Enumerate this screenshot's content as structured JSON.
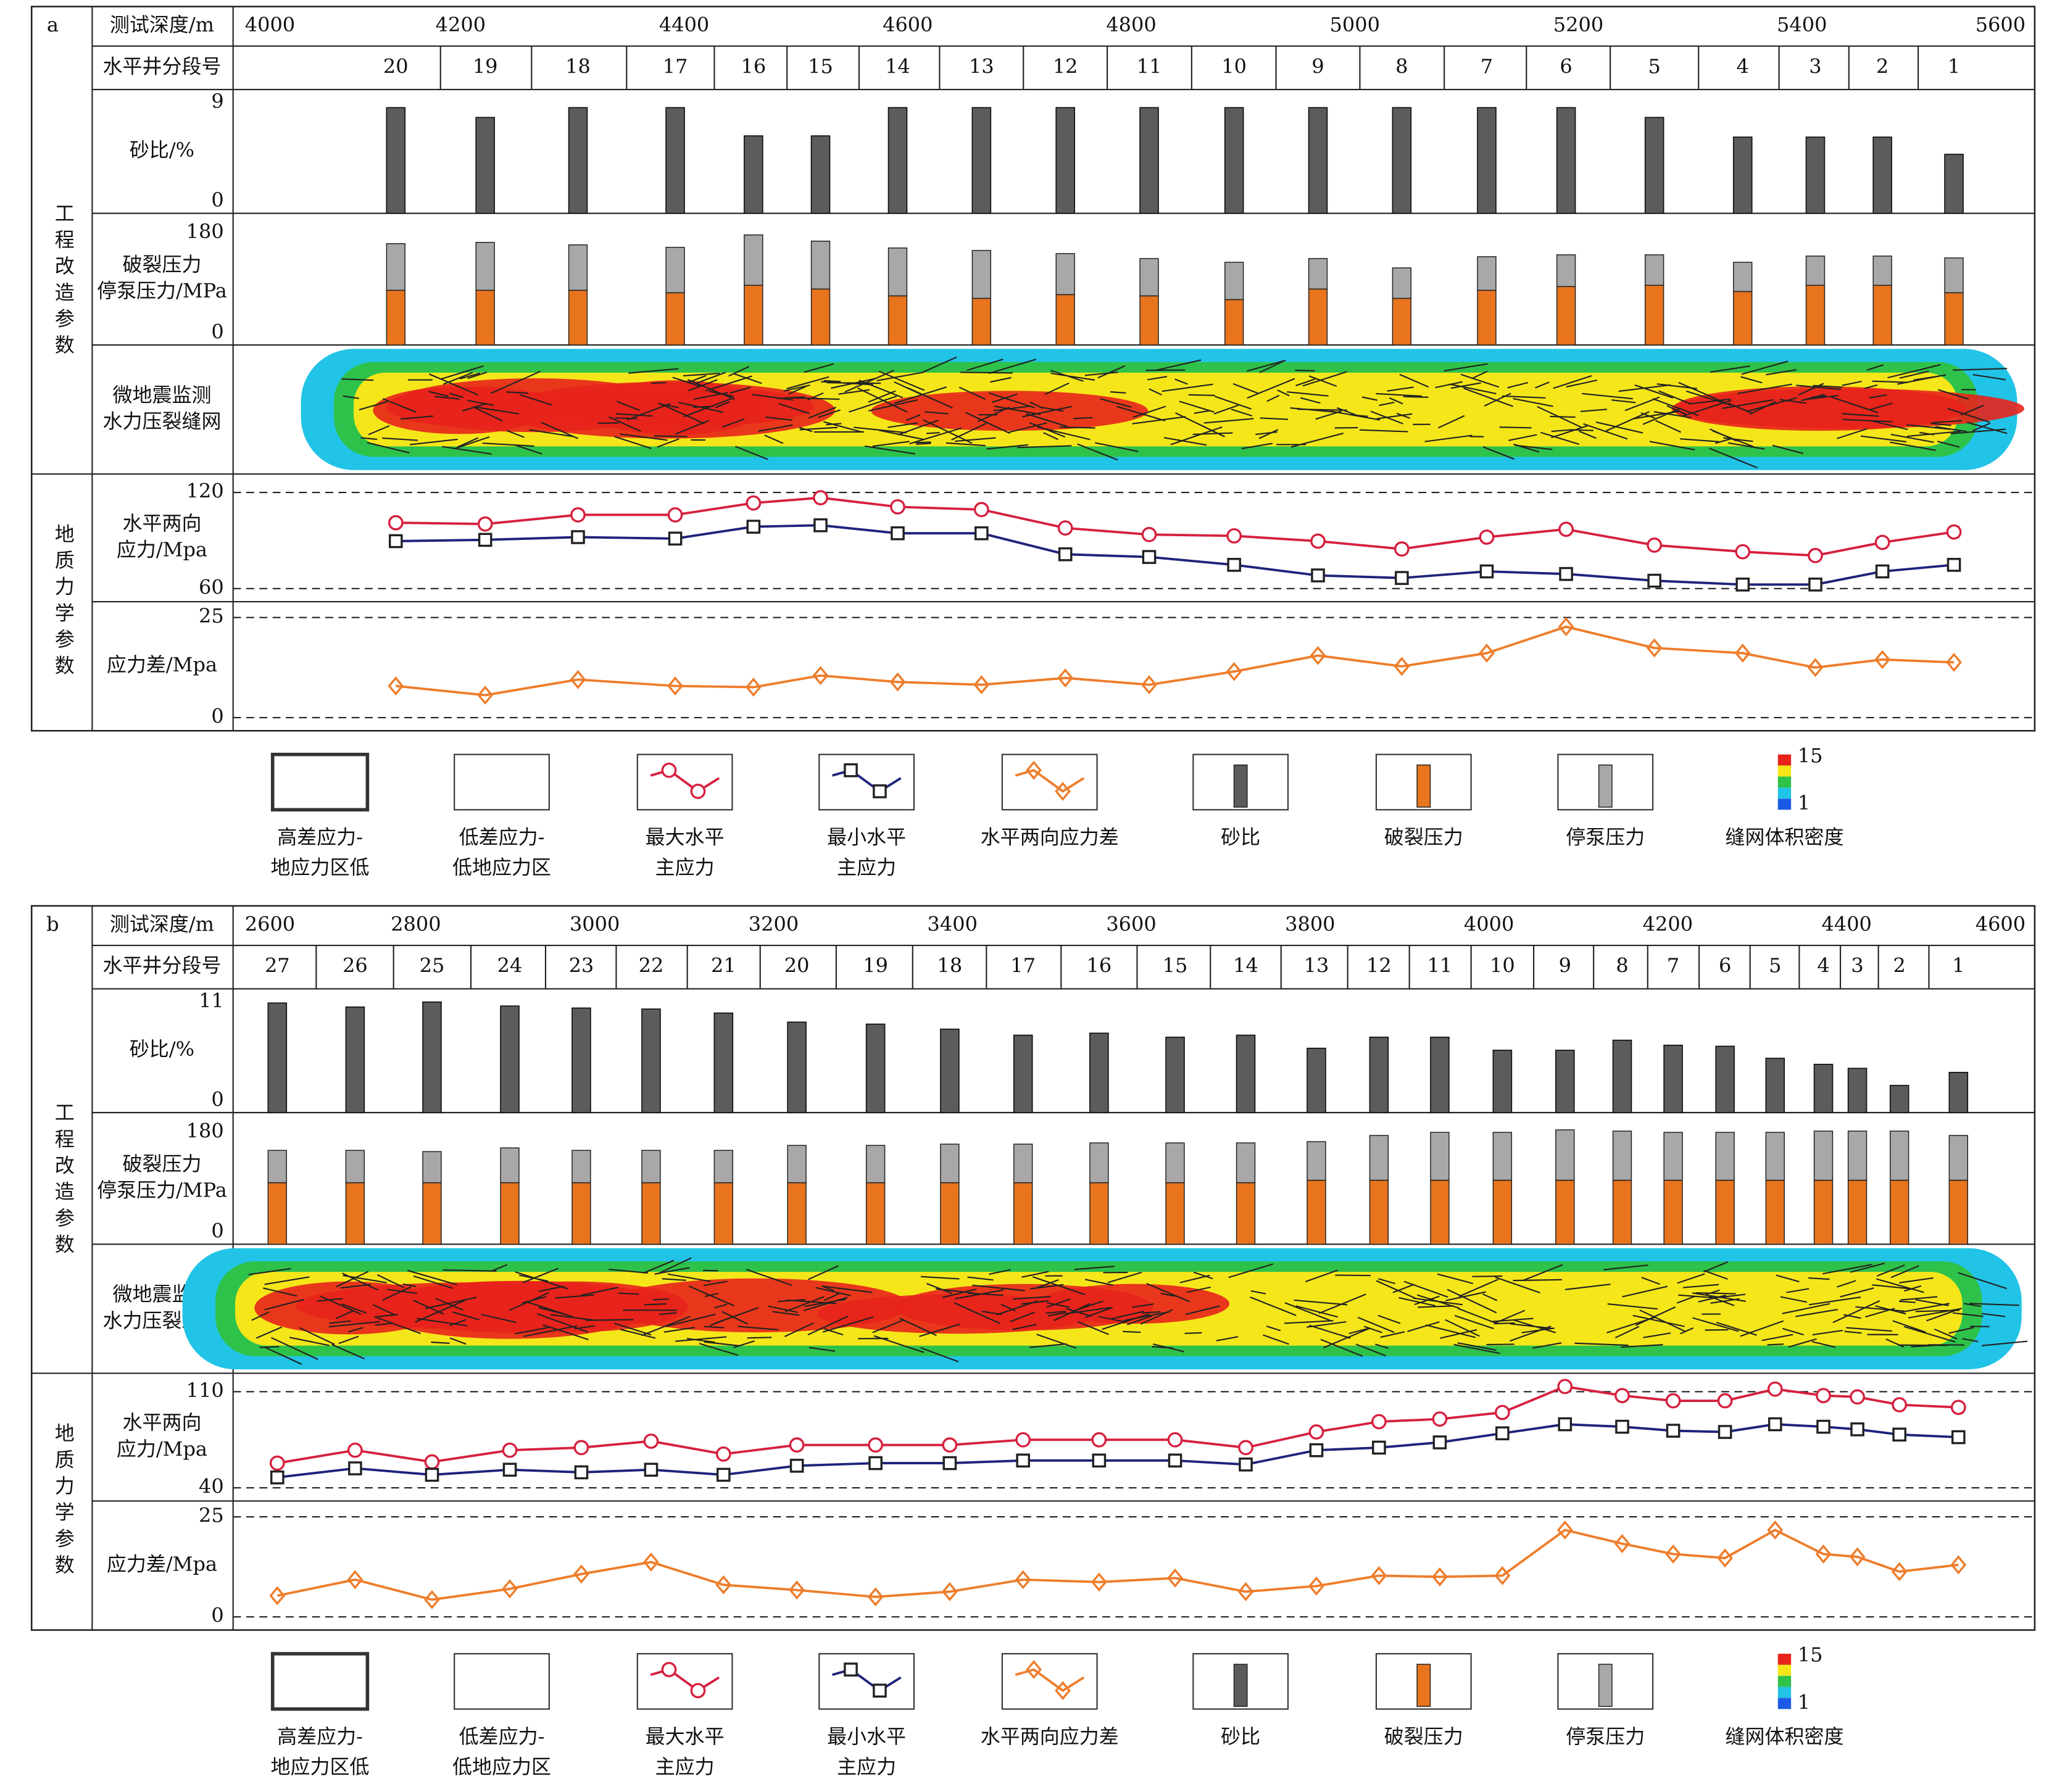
{
  "chart_data": [
    {
      "type": "welllog",
      "label": "a",
      "group_labels": [
        "工程改造参数",
        "地质力学参数"
      ],
      "depth_label": "测试深度/m",
      "xlim": [
        4000,
        5600
      ],
      "xticks": [
        4000,
        4200,
        4400,
        4600,
        4800,
        5000,
        5200,
        5400,
        5600
      ],
      "stage_label": "水平井分段号",
      "stages": [
        20,
        19,
        18,
        17,
        16,
        15,
        14,
        13,
        12,
        11,
        10,
        9,
        8,
        7,
        6,
        5,
        4,
        3,
        2,
        1
      ],
      "stage_depths": [
        4142,
        4222,
        4305,
        4392,
        4462,
        4522,
        4591,
        4666,
        4741,
        4816,
        4892,
        4967,
        5042,
        5118,
        5189,
        5268,
        5347,
        5412,
        5472,
        5536
      ],
      "sand": {
        "label": [
          "砂比/%"
        ],
        "ylim": [
          0,
          9
        ],
        "yticks": [
          0,
          9
        ],
        "color": "#5c5c5c",
        "values": [
          8.6,
          7.8,
          8.6,
          8.6,
          6.3,
          6.3,
          8.6,
          8.6,
          8.6,
          8.6,
          8.6,
          8.6,
          8.6,
          8.6,
          8.6,
          7.8,
          6.2,
          6.2,
          6.2,
          4.8
        ]
      },
      "pressure": {
        "label": [
          "破裂压力",
          "停泵压力/MPa"
        ],
        "ylim": [
          0,
          180
        ],
        "yticks": [
          0,
          180
        ],
        "series": [
          {
            "color": "#e8741e",
            "values": [
              88,
              88,
              88,
              84,
              96,
              90,
              79,
              75,
              81,
              79,
              73,
              90,
              75,
              88,
              94,
              96,
              86,
              96,
              96,
              84
            ]
          },
          {
            "color": "#a8a8a8",
            "values": [
              75,
              77,
              73,
              73,
              81,
              77,
              77,
              77,
              66,
              60,
              60,
              49,
              49,
              54,
              51,
              49,
              47,
              47,
              47,
              56
            ]
          }
        ]
      },
      "microseismic": {
        "label": [
          "微地震监测",
          "水力压裂缝网"
        ]
      },
      "stress": {
        "label": [
          "水平两向",
          "应力/Mpa"
        ],
        "ylim": [
          60,
          120
        ],
        "yticks": [
          60,
          120
        ],
        "grid": true,
        "series": [
          {
            "color": "#d6203f",
            "marker": "circle",
            "values": [
              101.1,
              100.3,
              106.0,
              106.0,
              113.4,
              116.7,
              111.0,
              109.3,
              97.8,
              93.7,
              92.9,
              89.6,
              84.7,
              92.1,
              97.0,
              87.1,
              83.0,
              80.6,
              88.8,
              95.3
            ]
          },
          {
            "color": "#1e237a",
            "marker": "square",
            "values": [
              89.6,
              90.4,
              92.1,
              91.2,
              98.6,
              99.5,
              94.5,
              94.5,
              81.4,
              79.7,
              74.8,
              68.2,
              66.6,
              70.7,
              69.1,
              64.9,
              62.5,
              62.5,
              70.7,
              74.8
            ]
          }
        ]
      },
      "stress_diff": {
        "label": [
          "应力差/Mpa"
        ],
        "ylim": [
          0,
          25
        ],
        "yticks": [
          0,
          25
        ],
        "grid": true,
        "color": "#ee7d2b",
        "marker": "diamond",
        "values": [
          7.9,
          5.6,
          9.5,
          7.9,
          7.6,
          10.5,
          8.9,
          8.2,
          9.9,
          8.2,
          11.5,
          15.5,
          12.8,
          16.1,
          22.7,
          17.4,
          16.1,
          12.5,
          14.5,
          13.8
        ]
      },
      "legend": [
        {
          "lines": [
            "高差应力-",
            "地应力区低"
          ],
          "swatch": "box-thick"
        },
        {
          "lines": [
            "低差应力-",
            "低地应力区"
          ],
          "swatch": "box"
        },
        {
          "lines": [
            "最大水平",
            "主应力"
          ],
          "swatch": "line",
          "color": "#d6203f",
          "marker": "circle"
        },
        {
          "lines": [
            "最小水平",
            "主应力"
          ],
          "swatch": "line",
          "color": "#1e237a",
          "marker": "square"
        },
        {
          "lines": [
            "水平两向应力差"
          ],
          "swatch": "line",
          "color": "#ee7d2b",
          "marker": "diamond"
        },
        {
          "lines": [
            "砂比"
          ],
          "swatch": "bar",
          "color": "#5c5c5c"
        },
        {
          "lines": [
            "破裂压力"
          ],
          "swatch": "bar",
          "color": "#e8741e"
        },
        {
          "lines": [
            "停泵压力"
          ],
          "swatch": "bar",
          "color": "#a8a8a8"
        },
        {
          "lines": [
            "缝网体积密度"
          ],
          "swatch": "colorbar",
          "colors": [
            "#e8231c",
            "#f5e61a",
            "#2ec24a",
            "#21c4e6",
            "#1c5ae6"
          ],
          "ticks": [
            15,
            1
          ]
        }
      ]
    },
    {
      "type": "welllog",
      "label": "b",
      "group_labels": [
        "工程改造参数",
        "地质力学参数"
      ],
      "depth_label": "测试深度/m",
      "xlim": [
        2600,
        4600
      ],
      "xticks": [
        2600,
        2800,
        3000,
        3200,
        3400,
        3600,
        3800,
        4000,
        4200,
        4400,
        4600
      ],
      "stage_label": "水平井分段号",
      "stages": [
        27,
        26,
        25,
        24,
        23,
        22,
        21,
        20,
        19,
        18,
        17,
        16,
        15,
        14,
        13,
        12,
        11,
        10,
        9,
        8,
        7,
        6,
        5,
        4,
        3,
        2,
        1
      ],
      "stage_depths": [
        2645,
        2732,
        2818,
        2905,
        2985,
        3063,
        3144,
        3226,
        3314,
        3397,
        3479,
        3564,
        3649,
        3728,
        3807,
        3877,
        3945,
        4015,
        4085,
        4149,
        4206,
        4264,
        4320,
        4374,
        4412,
        4459,
        4525
      ],
      "sand": {
        "label": [
          "砂比/%"
        ],
        "ylim": [
          0,
          11
        ],
        "yticks": [
          0,
          11
        ],
        "color": "#5c5c5c",
        "values": [
          10.9,
          10.5,
          11.0,
          10.6,
          10.4,
          10.3,
          9.9,
          9.0,
          8.8,
          8.3,
          7.7,
          7.9,
          7.5,
          7.7,
          6.4,
          7.5,
          7.5,
          6.2,
          6.2,
          7.2,
          6.7,
          6.6,
          5.4,
          4.8,
          4.4,
          2.7,
          4.0
        ]
      },
      "pressure": {
        "label": [
          "破裂压力",
          "停泵压力/MPa"
        ],
        "ylim": [
          0,
          180
        ],
        "yticks": [
          0,
          180
        ],
        "series": [
          {
            "color": "#e8741e",
            "values": [
              99,
              99,
              99,
              99,
              99,
              99,
              99,
              99,
              99,
              99,
              99,
              99,
              99,
              99,
              103,
              103,
              103,
              103,
              103,
              103,
              103,
              103,
              103,
              103,
              103,
              103,
              103
            ]
          },
          {
            "color": "#a8a8a8",
            "values": [
              52,
              52,
              50,
              56,
              52,
              52,
              52,
              60,
              60,
              62,
              62,
              64,
              64,
              64,
              62,
              72,
              77,
              77,
              81,
              79,
              77,
              77,
              77,
              79,
              79,
              79,
              72
            ]
          }
        ]
      },
      "microseismic": {
        "label": [
          "微地震监测",
          "水力压裂缝网"
        ]
      },
      "stress": {
        "label": [
          "水平两向",
          "应力/Mpa"
        ],
        "ylim": [
          40,
          110
        ],
        "yticks": [
          40,
          110
        ],
        "grid": true,
        "series": [
          {
            "color": "#d6203f",
            "marker": "circle",
            "values": [
              58.0,
              67.4,
              58.9,
              67.4,
              69.3,
              74.0,
              64.6,
              71.2,
              71.2,
              71.2,
              75.0,
              75.0,
              75.0,
              69.3,
              80.7,
              88.2,
              90.1,
              94.9,
              113.8,
              107.2,
              103.4,
              103.4,
              111.9,
              107.2,
              106.2,
              100.5,
              98.6
            ]
          },
          {
            "color": "#1e237a",
            "marker": "square",
            "values": [
              47.6,
              54.2,
              49.5,
              53.2,
              51.3,
              53.2,
              49.5,
              56.1,
              58.0,
              58.0,
              59.9,
              59.9,
              59.9,
              57.0,
              67.4,
              69.3,
              73.1,
              79.7,
              86.3,
              84.5,
              81.6,
              80.7,
              86.3,
              84.5,
              82.6,
              78.8,
              76.9
            ]
          }
        ]
      },
      "stress_diff": {
        "label": [
          "应力差/Mpa"
        ],
        "ylim": [
          0,
          25
        ],
        "yticks": [
          0,
          25
        ],
        "grid": true,
        "color": "#ee7d2b",
        "marker": "diamond",
        "values": [
          5.3,
          9.3,
          4.3,
          7.0,
          10.7,
          13.7,
          8.0,
          6.7,
          5.0,
          6.3,
          9.3,
          8.7,
          9.7,
          6.3,
          7.7,
          10.3,
          10.0,
          10.3,
          21.7,
          18.3,
          15.7,
          14.7,
          21.7,
          15.7,
          15.0,
          11.3,
          13.0
        ]
      },
      "legend": [
        {
          "lines": [
            "高差应力-",
            "地应力区低"
          ],
          "swatch": "box-thick"
        },
        {
          "lines": [
            "低差应力-",
            "低地应力区"
          ],
          "swatch": "box"
        },
        {
          "lines": [
            "最大水平",
            "主应力"
          ],
          "swatch": "line",
          "color": "#d6203f",
          "marker": "circle"
        },
        {
          "lines": [
            "最小水平",
            "主应力"
          ],
          "swatch": "line",
          "color": "#1e237a",
          "marker": "square"
        },
        {
          "lines": [
            "水平两向应力差"
          ],
          "swatch": "line",
          "color": "#ee7d2b",
          "marker": "diamond"
        },
        {
          "lines": [
            "砂比"
          ],
          "swatch": "bar",
          "color": "#5c5c5c"
        },
        {
          "lines": [
            "破裂压力"
          ],
          "swatch": "bar",
          "color": "#e8741e"
        },
        {
          "lines": [
            "停泵压力"
          ],
          "swatch": "bar",
          "color": "#a8a8a8"
        },
        {
          "lines": [
            "缝网体积密度"
          ],
          "swatch": "colorbar",
          "colors": [
            "#e8231c",
            "#f5e61a",
            "#2ec24a",
            "#21c4e6",
            "#1c5ae6"
          ],
          "ticks": [
            15,
            1
          ]
        }
      ]
    }
  ]
}
